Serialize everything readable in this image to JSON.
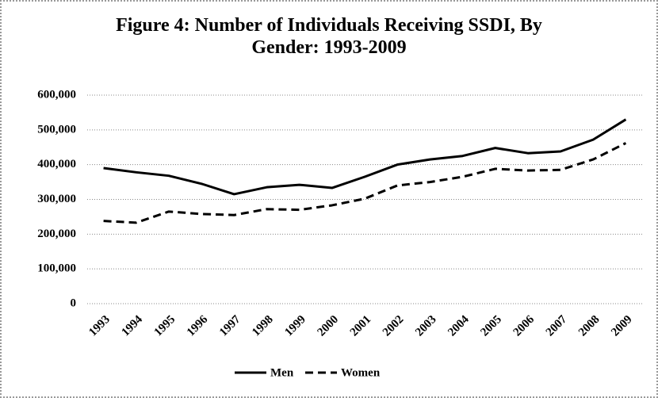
{
  "chart_data": {
    "type": "line",
    "title": "Figure 4: Number of Individuals Receiving SSDI, By Gender: 1993-2009",
    "categories": [
      "1993",
      "1994",
      "1995",
      "1996",
      "1997",
      "1998",
      "1999",
      "2000",
      "2001",
      "2002",
      "2003",
      "2004",
      "2005",
      "2006",
      "2007",
      "2008",
      "2009"
    ],
    "series": [
      {
        "name": "Men",
        "color": "#000000",
        "style": "solid",
        "values": [
          390000,
          378000,
          368000,
          345000,
          315000,
          335000,
          342000,
          333000,
          365000,
          400000,
          415000,
          425000,
          448000,
          433000,
          438000,
          472000,
          530000
        ]
      },
      {
        "name": "Women",
        "color": "#000000",
        "style": "dashed",
        "values": [
          238000,
          233000,
          265000,
          258000,
          255000,
          272000,
          270000,
          283000,
          302000,
          340000,
          350000,
          365000,
          388000,
          383000,
          385000,
          415000,
          462000
        ]
      }
    ],
    "ylim": [
      0,
      600000
    ],
    "yticks": [
      0,
      {
        "value": 100000,
        "label": "100,000"
      },
      {
        "value": 200000,
        "label": "200,000"
      },
      {
        "value": 300000,
        "label": "300,000"
      },
      {
        "value": 400000,
        "label": "400,000"
      },
      {
        "value": 500000,
        "label": "500,000"
      },
      {
        "value": 600000,
        "label": "600,000"
      }
    ],
    "grid": true,
    "legend": "bottom"
  }
}
